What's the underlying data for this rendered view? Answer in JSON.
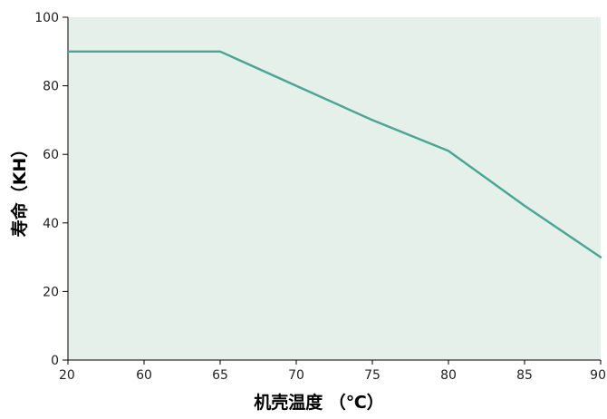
{
  "chart_data": {
    "type": "line",
    "xlabel": "机壳温度 （℃）",
    "ylabel": "寿命（KH）",
    "x_categories": [
      "20",
      "60",
      "65",
      "70",
      "75",
      "80",
      "85",
      "90"
    ],
    "y_ticks": [
      "0",
      "20",
      "40",
      "60",
      "80",
      "100"
    ],
    "ylim": [
      0,
      100
    ],
    "grid": false,
    "series": [
      {
        "x": [
          "20",
          "60",
          "65",
          "70",
          "75",
          "80",
          "85",
          "90"
        ],
        "y": [
          90,
          90,
          90,
          80,
          70,
          61,
          45,
          30
        ]
      }
    ],
    "colors": {
      "plot_background": "#e4f0e9",
      "line": "#4aa592",
      "axis": "#000000"
    }
  }
}
